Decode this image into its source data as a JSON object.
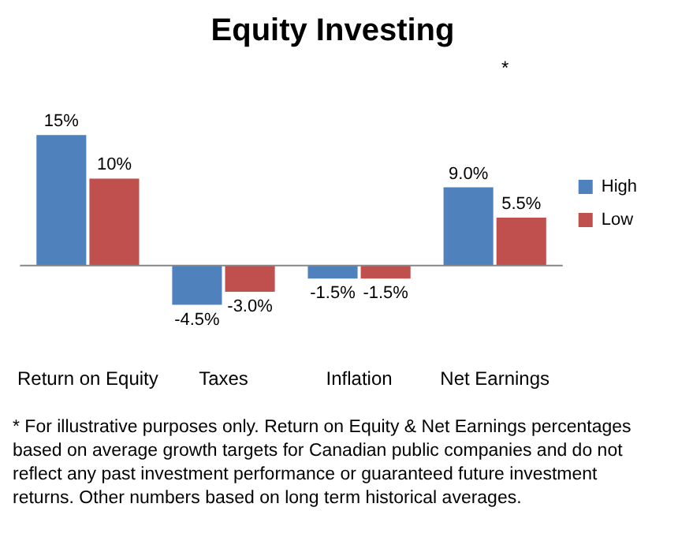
{
  "chart_data": {
    "type": "bar",
    "title": "Equity Investing",
    "categories": [
      "Return on Equity",
      "Taxes",
      "Inflation",
      "Net Earnings"
    ],
    "series": [
      {
        "name": "High",
        "color": "#4f81bd",
        "values": [
          15,
          -4.5,
          -1.5,
          9.0
        ],
        "value_labels": [
          "15%",
          "-4.5%",
          "-1.5%",
          "9.0%"
        ]
      },
      {
        "name": "Low",
        "color": "#c0504d",
        "values": [
          10,
          -3.0,
          -1.5,
          5.5
        ],
        "value_labels": [
          "10%",
          "-3.0%",
          "-1.5%",
          "5.5%"
        ]
      }
    ],
    "legend": "right",
    "grid": false,
    "annotations": [
      "*",
      "* For illustrative purposes only.  Return on Equity & Net Earnings percentages based on average growth targets for Canadian public companies and do not reflect any past investment performance or guaranteed future investment returns. Other numbers based on long term historical averages."
    ]
  }
}
